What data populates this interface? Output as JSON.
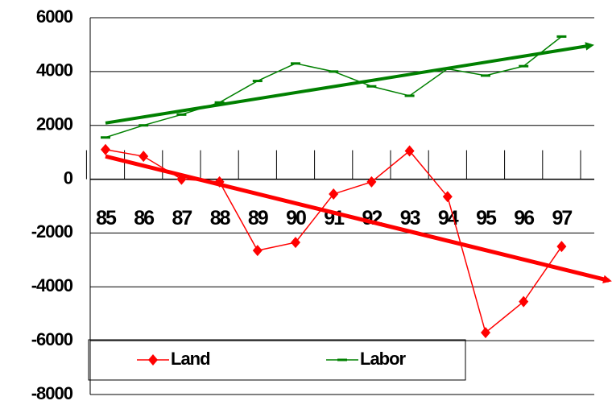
{
  "chart_data": {
    "type": "line",
    "categories": [
      "85",
      "86",
      "87",
      "88",
      "89",
      "90",
      "91",
      "92",
      "93",
      "94",
      "95",
      "96",
      "97"
    ],
    "series": [
      {
        "name": "Land",
        "color": "#ff0000",
        "marker": "diamond",
        "values": [
          1100,
          850,
          0,
          -100,
          -2650,
          -2350,
          -550,
          -100,
          1050,
          -650,
          -5700,
          -4550,
          -2500
        ]
      },
      {
        "name": "Labor",
        "color": "#008000",
        "marker": "dash",
        "values": [
          1550,
          2000,
          2400,
          2850,
          3650,
          4300,
          4000,
          3450,
          3100,
          4100,
          3850,
          4200,
          5300
        ]
      }
    ],
    "trendline": true,
    "ylim": [
      -8000,
      6000
    ],
    "yticks": [
      -8000,
      -6000,
      -4000,
      -2000,
      0,
      2000,
      4000,
      6000
    ],
    "grid": true
  }
}
